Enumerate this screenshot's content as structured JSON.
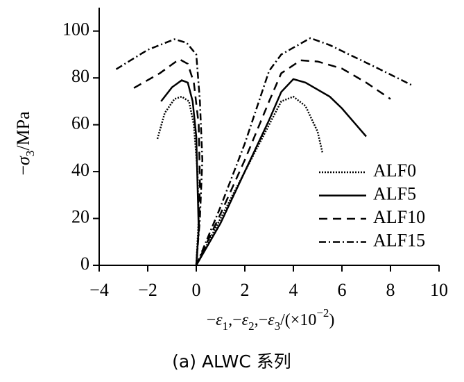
{
  "chart_data": {
    "type": "line",
    "title": "(a) ALWC 系列",
    "y_label": [
      "−",
      "σ",
      "3",
      "/MPa"
    ],
    "x_label": [
      "−",
      "ε",
      "1",
      ",−",
      "ε",
      "2",
      ",−",
      "ε",
      "3",
      "/(×10",
      "−2",
      ")"
    ],
    "xlim": [
      -4,
      10
    ],
    "xticks": [
      {
        "value": -4,
        "label": "−4"
      },
      {
        "value": -2,
        "label": "−2"
      },
      0,
      2,
      4,
      6,
      8,
      10
    ],
    "ylim": [
      0,
      110
    ],
    "yticks": [
      0,
      20,
      40,
      60,
      80,
      100
    ],
    "legend": "center right",
    "series": [
      {
        "name": "ALF0",
        "color": "#000000",
        "line_style": "dotted",
        "x": [
          -1.6,
          -1.3,
          -0.9,
          -0.6,
          -0.3,
          -0.1,
          0.05,
          0.1,
          0,
          1,
          2,
          3,
          3.5,
          4,
          4.5,
          5,
          5.2
        ],
        "values": [
          54,
          65,
          71,
          72,
          70,
          60,
          40,
          20,
          0,
          20,
          40,
          60,
          70,
          72,
          68,
          57,
          48
        ]
      },
      {
        "name": "ALF5",
        "color": "#000000",
        "line_style": "solid",
        "x": [
          -1.45,
          -1.0,
          -0.6,
          -0.35,
          -0.15,
          0,
          0.05,
          0.1,
          0,
          1,
          2,
          3,
          3.5,
          4,
          4.5,
          5.5,
          6,
          7
        ],
        "values": [
          70,
          76,
          79,
          78,
          70,
          55,
          35,
          15,
          0,
          18,
          40,
          62,
          74,
          79.5,
          78,
          72,
          67,
          55
        ]
      },
      {
        "name": "ALF10",
        "color": "#000000",
        "line_style": "dashed",
        "x": [
          -2.57,
          -1.5,
          -0.7,
          -0.35,
          -0.1,
          0.1,
          0.15,
          0.1,
          0,
          1,
          2,
          3,
          3.5,
          4.3,
          5,
          6,
          7,
          8
        ],
        "values": [
          75.7,
          82,
          88,
          86,
          78,
          60,
          35,
          15,
          0,
          22,
          45,
          70,
          82,
          87.5,
          87,
          84,
          78,
          71
        ]
      },
      {
        "name": "ALF15",
        "color": "#000000",
        "line_style": "dashdot",
        "x": [
          -3.3,
          -2,
          -0.9,
          -0.4,
          0,
          0.15,
          0.25,
          0.15,
          0,
          1,
          2,
          3,
          3.5,
          4.7,
          5.5,
          6.5,
          7.5,
          8.94
        ],
        "values": [
          83.7,
          92,
          96.5,
          95,
          90,
          70,
          45,
          20,
          0,
          25,
          52,
          83,
          90,
          97,
          94,
          89,
          84,
          76.6
        ]
      }
    ]
  }
}
